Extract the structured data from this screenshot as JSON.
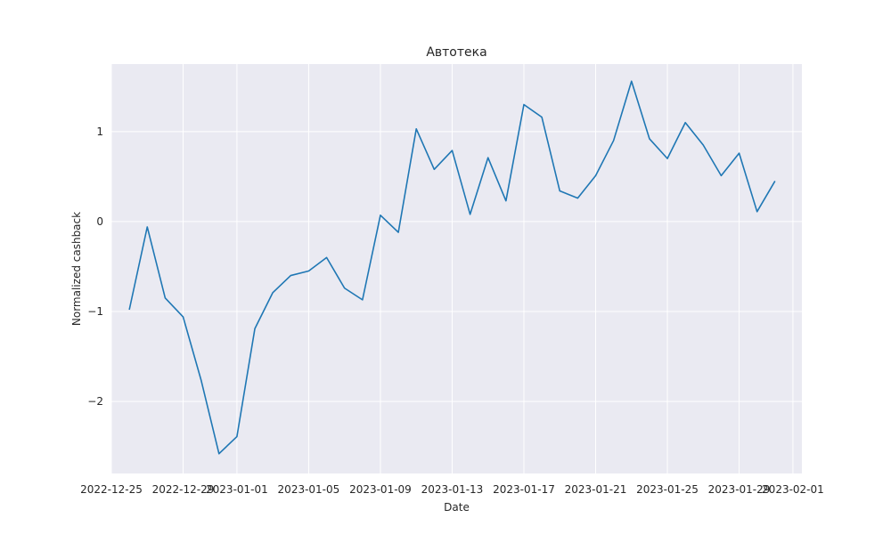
{
  "chart_data": {
    "type": "line",
    "title": "Автотека",
    "xlabel": "Date",
    "ylabel": "Normalized cashback",
    "xlim": [
      "2022-12-25T00:00",
      "2023-02-01T12:00"
    ],
    "ylim": [
      -2.8,
      1.75
    ],
    "x_ticks": [
      "2022-12-25",
      "2022-12-29",
      "2023-01-01",
      "2023-01-05",
      "2023-01-09",
      "2023-01-13",
      "2023-01-17",
      "2023-01-21",
      "2023-01-25",
      "2023-01-29",
      "2023-02-01"
    ],
    "y_ticks": [
      -2,
      -1,
      0,
      1
    ],
    "grid": true,
    "colors": {
      "background": "#eaeaf2",
      "grid": "#ffffff",
      "line": "#1f77b4"
    },
    "series": [
      {
        "x": [
          "2022-12-26",
          "2022-12-27",
          "2022-12-28",
          "2022-12-29",
          "2022-12-30",
          "2022-12-31",
          "2023-01-01",
          "2023-01-02",
          "2023-01-03",
          "2023-01-04",
          "2023-01-05",
          "2023-01-06",
          "2023-01-07",
          "2023-01-08",
          "2023-01-09",
          "2023-01-10",
          "2023-01-11",
          "2023-01-12",
          "2023-01-13",
          "2023-01-14",
          "2023-01-15",
          "2023-01-16",
          "2023-01-17",
          "2023-01-18",
          "2023-01-19",
          "2023-01-20",
          "2023-01-21",
          "2023-01-22",
          "2023-01-23",
          "2023-01-24",
          "2023-01-25",
          "2023-01-26",
          "2023-01-27",
          "2023-01-28",
          "2023-01-29",
          "2023-01-30",
          "2023-01-31"
        ],
        "values": [
          -0.98,
          -0.06,
          -0.85,
          -1.06,
          -1.76,
          -2.58,
          -2.39,
          -1.19,
          -0.79,
          -0.6,
          -0.55,
          -0.4,
          -0.74,
          -0.87,
          0.07,
          -0.12,
          1.03,
          0.58,
          0.79,
          0.08,
          0.71,
          0.23,
          1.3,
          1.16,
          0.34,
          0.26,
          0.51,
          0.9,
          1.56,
          0.92,
          0.7,
          1.1,
          0.85,
          0.51,
          0.76,
          0.11,
          0.45
        ]
      }
    ]
  }
}
